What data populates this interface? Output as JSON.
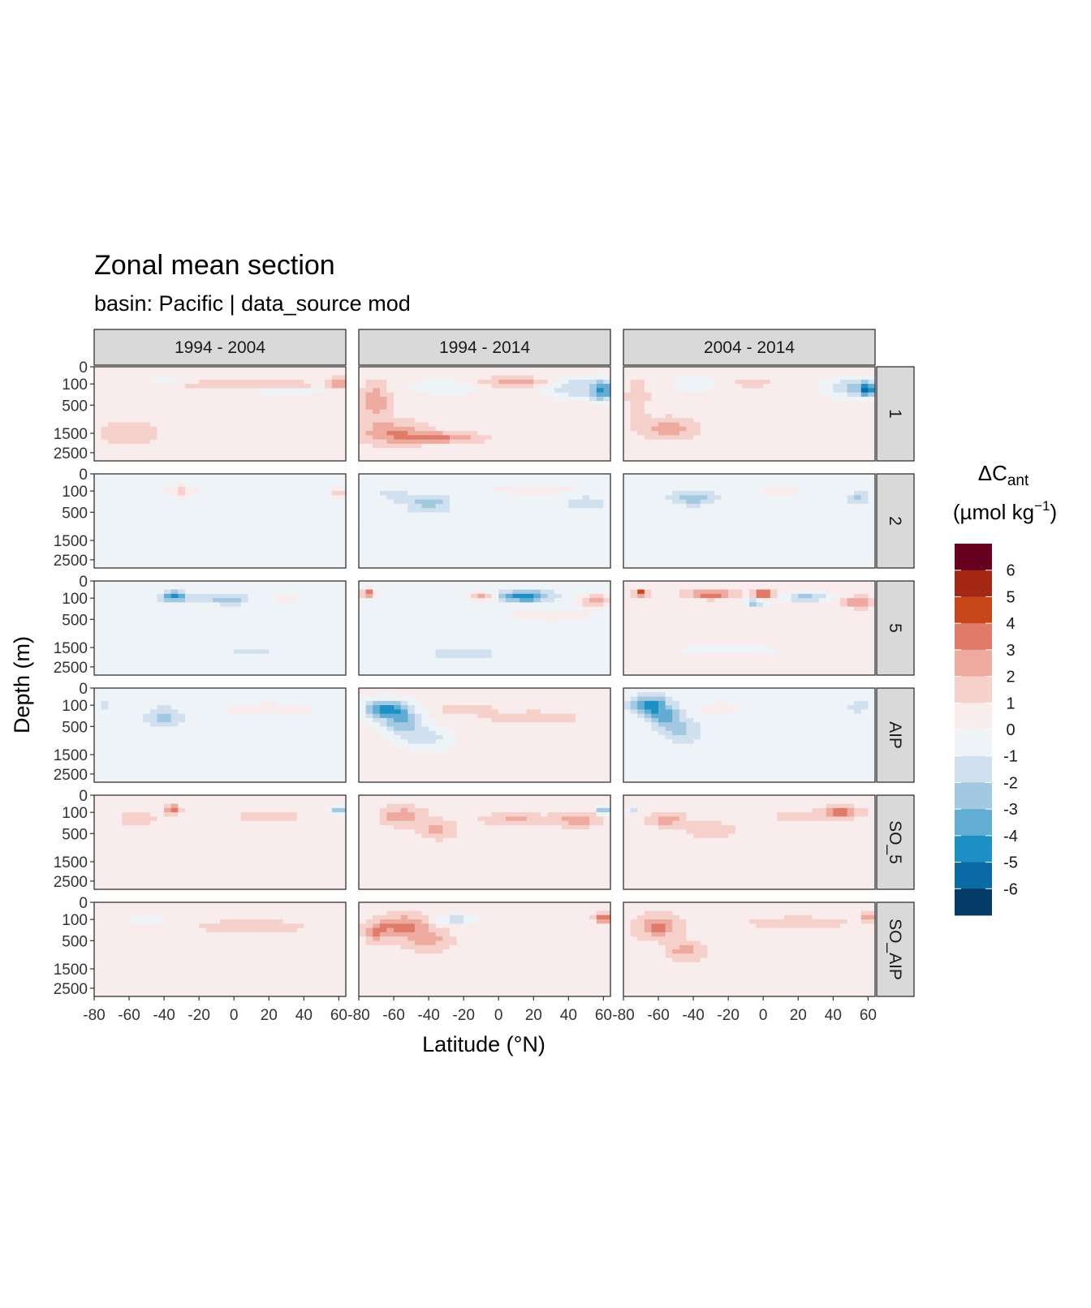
{
  "chart_data": {
    "type": "heatmap",
    "title": "Zonal mean section",
    "subtitle": "basin: Pacific | data_source mod",
    "xlabel": "Latitude (°N)",
    "ylabel": "Depth (m)",
    "x_ticks": [
      -80,
      -60,
      -40,
      -20,
      0,
      20,
      40,
      60
    ],
    "xlim": [
      -80,
      64
    ],
    "y_ticks": [
      0,
      100,
      500,
      1500,
      2500
    ],
    "ylim": [
      0,
      3000
    ],
    "y_scale": "square-root (reversed)",
    "grid": "none",
    "legend_position": "right",
    "legend": {
      "title_main": "ΔC",
      "title_sub": "ant",
      "unit_pre": "(µmol kg",
      "unit_sup": "−1",
      "unit_post": ")",
      "labels": [
        "6",
        "5",
        "4",
        "3",
        "2",
        "1",
        "0",
        "-1",
        "-2",
        "-3",
        "-4",
        "-5",
        "-6"
      ],
      "colors": [
        "#67001f",
        "#a52814",
        "#c8451a",
        "#e07b6a",
        "#efaaa0",
        "#f6d0cb",
        "#f9ecec",
        "#eef3f7",
        "#d0e0ee",
        "#a3c8e1",
        "#62add3",
        "#1c8fc3",
        "#0a6aa3",
        "#053c67"
      ]
    },
    "columns": [
      "1994 - 2004",
      "1994 - 2014",
      "2004 - 2014"
    ],
    "rows": [
      "1",
      "2",
      "5",
      "AIP",
      "SO_5",
      "SO_AIP"
    ]
  }
}
